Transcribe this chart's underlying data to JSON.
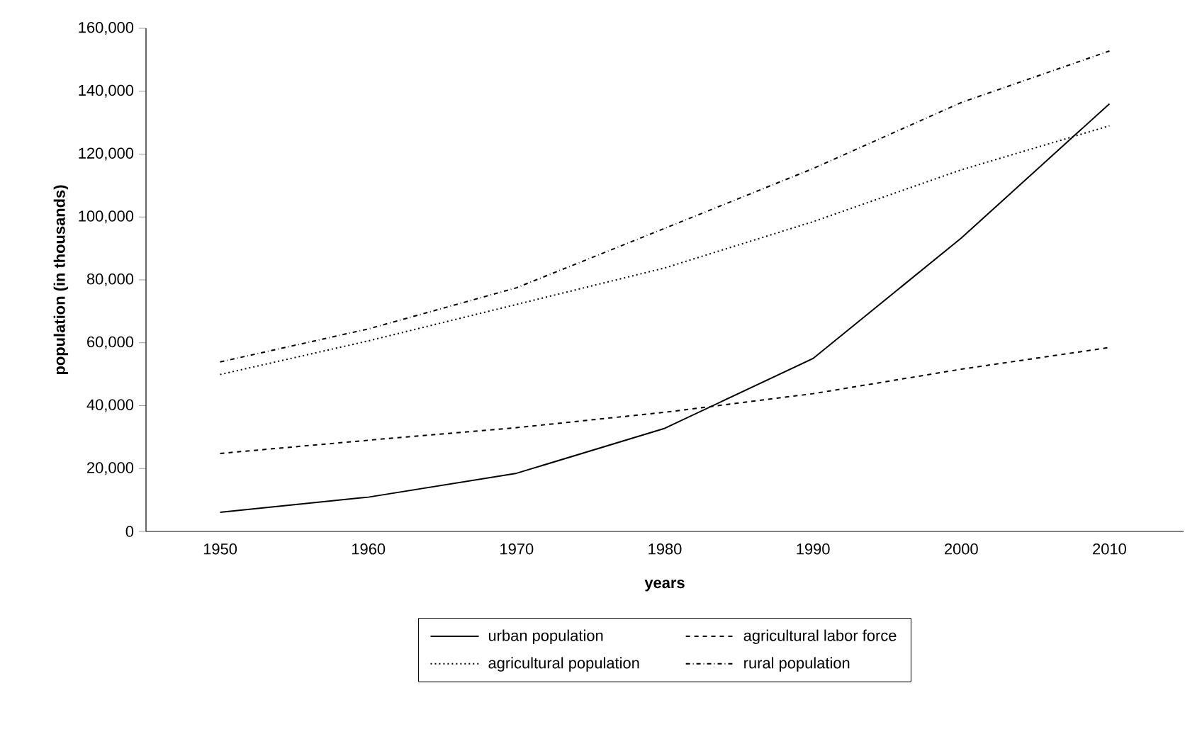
{
  "chart_data": {
    "type": "line",
    "xlabel": "years",
    "ylabel": "population (in thousands)",
    "categories": [
      "1950",
      "1960",
      "1970",
      "1980",
      "1990",
      "2000",
      "2010"
    ],
    "series": [
      {
        "name": "urban population",
        "color": "#000000",
        "line_style": "solid",
        "values": [
          6100,
          10900,
          18500,
          32800,
          55000,
          93300,
          136000
        ]
      },
      {
        "name": "agricultural labor force",
        "color": "#000000",
        "line_style": "dashed",
        "values": [
          24800,
          29000,
          33000,
          37900,
          43800,
          51600,
          58500
        ]
      },
      {
        "name": "agricultural population",
        "color": "#000000",
        "line_style": "dotted",
        "values": [
          49900,
          60600,
          72200,
          83800,
          98500,
          115000,
          129000
        ]
      },
      {
        "name": "rural population",
        "color": "#000000",
        "line_style": "dashdot",
        "values": [
          53900,
          64400,
          77500,
          96400,
          115400,
          136400,
          152800
        ]
      }
    ],
    "ylim": [
      0,
      160000
    ],
    "yticks": [
      0,
      {
        "value": 20000,
        "label": "20,000"
      },
      {
        "value": 40000,
        "label": "40,000"
      },
      {
        "value": 60000,
        "label": "60,000"
      },
      {
        "value": 80000,
        "label": "80,000"
      },
      {
        "value": 100000,
        "label": "100,000"
      },
      {
        "value": 120000,
        "label": "120,000"
      },
      {
        "value": 140000,
        "label": "140,000"
      },
      {
        "value": 160000,
        "label": "160,000"
      }
    ],
    "grid": false,
    "legend": "bottom",
    "marker": "none"
  }
}
